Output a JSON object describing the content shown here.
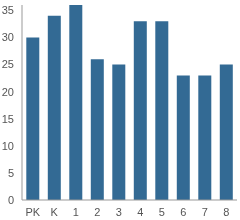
{
  "chart_data": {
    "type": "bar",
    "categories": [
      "PK",
      "K",
      "1",
      "2",
      "3",
      "4",
      "5",
      "6",
      "7",
      "8"
    ],
    "values": [
      30,
      34,
      36,
      26,
      25,
      33,
      33,
      23,
      23,
      25
    ],
    "color": "#336a94",
    "ylim": [
      0,
      36
    ],
    "yticks": [
      0,
      5,
      10,
      15,
      20,
      25,
      30,
      35
    ],
    "grid": false
  }
}
